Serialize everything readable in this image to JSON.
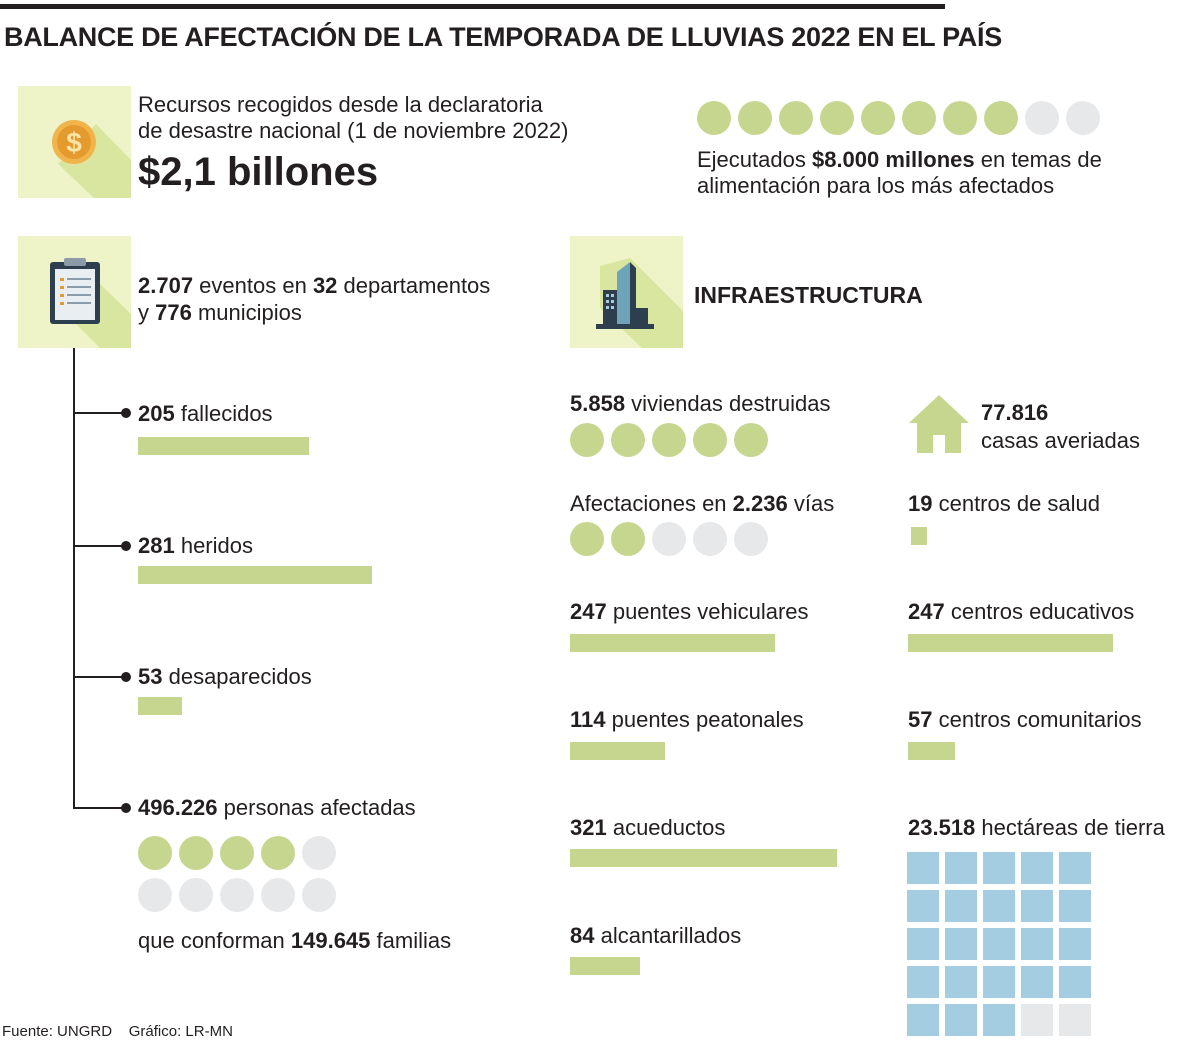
{
  "title": "BALANCE DE AFECTACIÓN DE LA TEMPORADA DE LLUVIAS 2022 EN EL PAÍS",
  "recursos": {
    "line1": "Recursos recogidos desde la declaratoria",
    "line2": "de desastre nacional (1 de noviembre 2022)",
    "amount": "$2,1 billones"
  },
  "ejecutados": {
    "pre": "Ejecutados ",
    "amount": "$8.000 millones",
    "post": " en temas de",
    "line2": "alimentación para los más afectados"
  },
  "eventos": {
    "n1": "2.707",
    "t1": " eventos en ",
    "n2": "32",
    "t2": " departamentos",
    "t3": "y ",
    "n3": "776",
    "t4": " municipios"
  },
  "infra_title": "INFRAESTRUCTURA",
  "familias": {
    "pre": "que conforman ",
    "num": "149.645",
    "post": " familias"
  },
  "footer": {
    "fuente": "Fuente:  UNGRD",
    "grafico": "Gráfico: LR-MN"
  },
  "colors": {
    "green": "#c6d68f",
    "grey": "#e7e8ea",
    "blue": "#a4cde1",
    "iconbg": "#eef3c8"
  },
  "chart_data": [
    {
      "type": "bar",
      "title": "Personas",
      "bar_scale_max": 350,
      "items": [
        {
          "num": "205",
          "label": " fallecidos",
          "value": 205
        },
        {
          "num": "281",
          "label": " heridos",
          "value": 281
        },
        {
          "num": "53",
          "label": " desaparecidos",
          "value": 53
        }
      ]
    },
    {
      "type": "dots",
      "title": "Personas afectadas",
      "num": "496.226",
      "label": " personas afectadas",
      "filled": 4,
      "total": 10
    },
    {
      "type": "dots",
      "title": "Recursos ejecutados",
      "filled": 8,
      "total": 10
    },
    {
      "type": "dots",
      "title": "Viviendas destruidas",
      "num": "5.858",
      "label": " viviendas destruidas",
      "filled": 5,
      "total": 5
    },
    {
      "type": "dots",
      "title": "Vías afectadas",
      "pre": "Afectaciones en ",
      "num": "2.236",
      "label": " vías",
      "filled": 2,
      "total": 5
    },
    {
      "type": "bar",
      "title": "Infraestructura",
      "bar_scale_max": 321,
      "items": [
        {
          "num": "247",
          "label": " puentes vehiculares",
          "value": 247
        },
        {
          "num": "114",
          "label": " puentes peatonales",
          "value": 114
        },
        {
          "num": "321",
          "label": " acueductos",
          "value": 321
        },
        {
          "num": "84",
          "label": " alcantarillados",
          "value": 84
        },
        {
          "num": "19",
          "label": " centros de salud",
          "value": 19
        },
        {
          "num": "247",
          "label": " centros educativos",
          "value": 247
        },
        {
          "num": "57",
          "label": " centros comunitarios",
          "value": 57
        }
      ]
    },
    {
      "type": "icon",
      "title": "Casas averiadas",
      "num": "77.816",
      "label": "casas averiadas"
    },
    {
      "type": "waffle",
      "title": "Hectáreas de tierra",
      "num": "23.518",
      "label": " hectáreas de tierra",
      "filled": 23,
      "total": 25
    }
  ]
}
